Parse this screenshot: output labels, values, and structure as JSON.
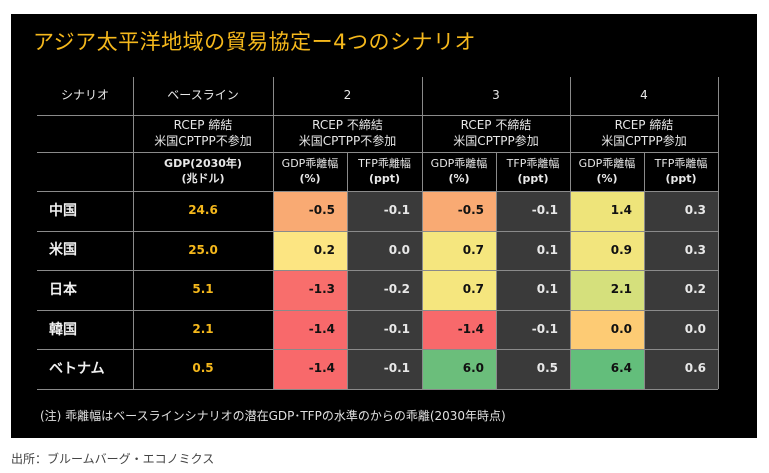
{
  "title": "アジア太平洋地域の貿易協定ー4つのシナリオ",
  "header": {
    "scenario_label": "シナリオ",
    "baseline_label": "ベースライン",
    "baseline_desc_1": "RCEP 締結",
    "baseline_desc_2": "米国CPTPP不参加",
    "baseline_metric_1": "GDP(2030年)",
    "baseline_metric_2": "(兆ドル)",
    "scenarios": [
      {
        "num": "2",
        "desc_1": "RCEP 不締結",
        "desc_2": "米国CPTPP不参加"
      },
      {
        "num": "3",
        "desc_1": "RCEP 不締結",
        "desc_2": "米国CPTPP参加"
      },
      {
        "num": "4",
        "desc_1": "RCEP 締結",
        "desc_2": "米国CPTPP参加"
      }
    ],
    "gdp_metric_1": "GDP乖離幅",
    "gdp_metric_2": "(%)",
    "tfp_metric_1": "TFP乖離幅",
    "tfp_metric_2": "(ppt)"
  },
  "rows": [
    {
      "country": "中国",
      "baseline": "24.6",
      "s2_gdp": "-0.5",
      "s2_tfp": "-0.1",
      "s3_gdp": "-0.5",
      "s3_tfp": "-0.1",
      "s4_gdp": "1.4",
      "s4_tfp": "0.3",
      "colors": {
        "s2": "#F9AA73",
        "s3": "#F9AA73",
        "s4": "#EEE47A"
      }
    },
    {
      "country": "米国",
      "baseline": "25.0",
      "s2_gdp": "0.2",
      "s2_tfp": "0.0",
      "s3_gdp": "0.7",
      "s3_tfp": "0.1",
      "s4_gdp": "0.9",
      "s4_tfp": "0.3",
      "colors": {
        "s2": "#FCE582",
        "s3": "#F5E67E",
        "s4": "#F2E57D"
      }
    },
    {
      "country": "日本",
      "baseline": "5.1",
      "s2_gdp": "-1.3",
      "s2_tfp": "-0.2",
      "s3_gdp": "0.7",
      "s3_tfp": "0.1",
      "s4_gdp": "2.1",
      "s4_tfp": "0.2",
      "colors": {
        "s2": "#F86E6C",
        "s3": "#F5E67E",
        "s4": "#D5E07C"
      }
    },
    {
      "country": "韓国",
      "baseline": "2.1",
      "s2_gdp": "-1.4",
      "s2_tfp": "-0.1",
      "s3_gdp": "-1.4",
      "s3_tfp": "-0.1",
      "s4_gdp": "0.0",
      "s4_tfp": "0.0",
      "colors": {
        "s2": "#F8696B",
        "s3": "#F8696B",
        "s4": "#FDCB74"
      }
    },
    {
      "country": "ベトナム",
      "baseline": "0.5",
      "s2_gdp": "-1.4",
      "s2_tfp": "-0.1",
      "s3_gdp": "6.0",
      "s3_tfp": "0.5",
      "s4_gdp": "6.4",
      "s4_tfp": "0.6",
      "colors": {
        "s2": "#F8696B",
        "s3": "#6BBE7B",
        "s4": "#63BE7B"
      }
    }
  ],
  "note": "(注) 乖離幅はベースラインシナリオの潜在GDP･TFPの水準のからの乖離(2030年時点)",
  "source": "出所：ブルームバーグ・エコノミクス"
}
